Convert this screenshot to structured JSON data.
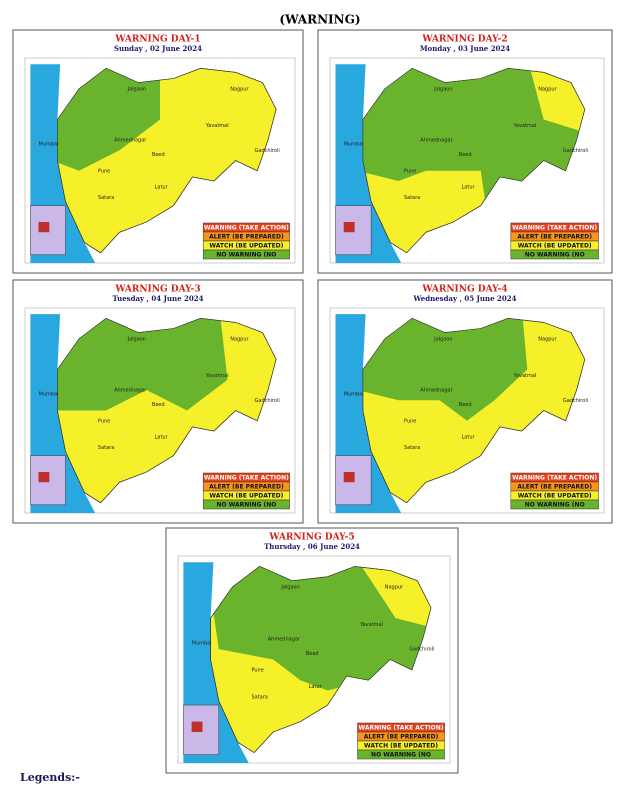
{
  "header": {
    "title": "(WARNING)"
  },
  "panels": [
    {
      "title": "WARNING DAY-1",
      "date": "Sunday , 02 June 2024"
    },
    {
      "title": "WARNING DAY-2",
      "date": "Monday , 03 June 2024"
    },
    {
      "title": "WARNING DAY-3",
      "date": "Tuesday , 04 June 2024"
    },
    {
      "title": "WARNING DAY-4",
      "date": "Wednesday , 05 June 2024"
    },
    {
      "title": "WARNING DAY-5",
      "date": "Thursday , 06 June 2024"
    }
  ],
  "legend_items": [
    {
      "label": "WARNING (TAKE ACTION)",
      "color": "#e8401c"
    },
    {
      "label": "ALERT (BE PREPARED)",
      "color": "#f7941d"
    },
    {
      "label": "WATCH (BE UPDATED)",
      "color": "#f5f02a"
    },
    {
      "label": "NO WARNING (NO",
      "color": "#6ab42d"
    }
  ],
  "map_labels": [
    "Mumbai",
    "Ahmednagar",
    "Pune",
    "Beed",
    "Satara",
    "Nagpur",
    "Yavatmal",
    "Gadchiroli",
    "Jalgaon",
    "Latur"
  ],
  "footer": {
    "legends": "Legends:-"
  }
}
